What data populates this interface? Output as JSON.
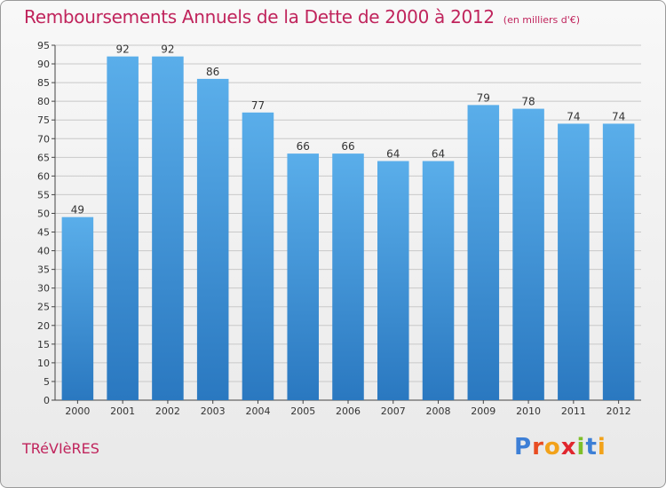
{
  "header": {
    "title": "Remboursements Annuels de la Dette de 2000 à 2012",
    "unit": "(en milliers d'€)"
  },
  "footer": {
    "commune": "TRéVIèRES",
    "logo_letters": [
      "P",
      "r",
      "o",
      "x",
      "i",
      "t",
      "i"
    ],
    "logo_colors": [
      "#3d7fd6",
      "#e84c22",
      "#f2a21a",
      "#e0262e",
      "#7fbf2a",
      "#3d7fd6",
      "#f2a21a"
    ]
  },
  "colors": {
    "title": "#c0245c",
    "bar_top": "#5aaeea",
    "bar_bottom": "#2a78c0",
    "grid": "#c8c8c8",
    "axis": "#444444",
    "text": "#333333"
  },
  "chart_data": {
    "type": "bar",
    "categories": [
      "2000",
      "2001",
      "2002",
      "2003",
      "2004",
      "2005",
      "2006",
      "2007",
      "2008",
      "2009",
      "2010",
      "2011",
      "2012"
    ],
    "values": [
      49,
      92,
      92,
      86,
      77,
      66,
      66,
      64,
      64,
      79,
      78,
      74,
      74
    ],
    "ylim": [
      0,
      95
    ],
    "yticks": [
      0,
      5,
      10,
      15,
      20,
      25,
      30,
      35,
      40,
      45,
      50,
      55,
      60,
      65,
      70,
      75,
      80,
      85,
      90,
      95
    ],
    "grid": true,
    "xlabel": "",
    "ylabel": ""
  }
}
